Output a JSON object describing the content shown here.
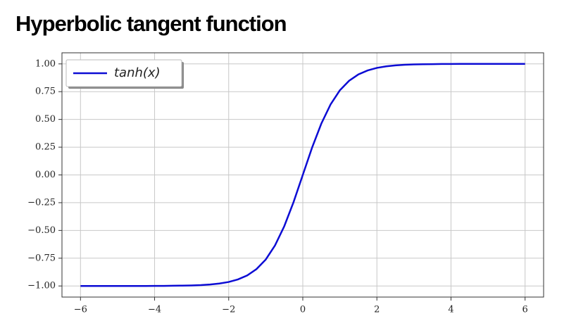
{
  "chart_data": {
    "type": "line",
    "title": "Hyperbolic tangent function",
    "x": [
      -6,
      -5.75,
      -5.5,
      -5.25,
      -5,
      -4.75,
      -4.5,
      -4.25,
      -4,
      -3.75,
      -3.5,
      -3.25,
      -3,
      -2.75,
      -2.5,
      -2.25,
      -2,
      -1.75,
      -1.5,
      -1.25,
      -1,
      -0.75,
      -0.5,
      -0.25,
      0,
      0.25,
      0.5,
      0.75,
      1,
      1.25,
      1.5,
      1.75,
      2,
      2.25,
      2.5,
      2.75,
      3,
      3.25,
      3.5,
      3.75,
      4,
      4.25,
      4.5,
      4.75,
      5,
      5.25,
      5.5,
      5.75,
      6
    ],
    "series": [
      {
        "name": "tanh(x)",
        "color": "#0c0cd4",
        "values": [
          -1.0,
          -1.0,
          -1.0,
          -1.0,
          -1.0,
          -1.0,
          -1.0,
          -1.0,
          -0.999,
          -0.999,
          -0.998,
          -0.997,
          -0.995,
          -0.992,
          -0.987,
          -0.978,
          -0.964,
          -0.941,
          -0.905,
          -0.848,
          -0.762,
          -0.635,
          -0.462,
          -0.245,
          0,
          0.245,
          0.462,
          0.635,
          0.762,
          0.848,
          0.905,
          0.941,
          0.964,
          0.978,
          0.987,
          0.992,
          0.995,
          0.997,
          0.998,
          0.999,
          0.999,
          1.0,
          1.0,
          1.0,
          1.0,
          1.0,
          1.0,
          1.0,
          1.0
        ]
      }
    ],
    "xlim": [
      -6.5,
      6.5
    ],
    "ylim": [
      -1.1,
      1.1
    ],
    "xticks": [
      {
        "value": -6,
        "label": "−6"
      },
      {
        "value": -4,
        "label": "−4"
      },
      {
        "value": -2,
        "label": "−2"
      },
      0,
      2,
      4,
      6
    ],
    "yticks": [
      {
        "value": -1,
        "label": "−1.00"
      },
      {
        "value": -0.75,
        "label": "−0.75"
      },
      {
        "value": -0.5,
        "label": "−0.50"
      },
      {
        "value": -0.25,
        "label": "−0.25"
      },
      {
        "value": 0,
        "label": "0.00"
      },
      {
        "value": 0.25,
        "label": "0.25"
      },
      {
        "value": 0.5,
        "label": "0.50"
      },
      {
        "value": 0.75,
        "label": "0.75"
      },
      {
        "value": 1,
        "label": "1.00"
      }
    ],
    "grid": true,
    "legend": "upper left"
  }
}
